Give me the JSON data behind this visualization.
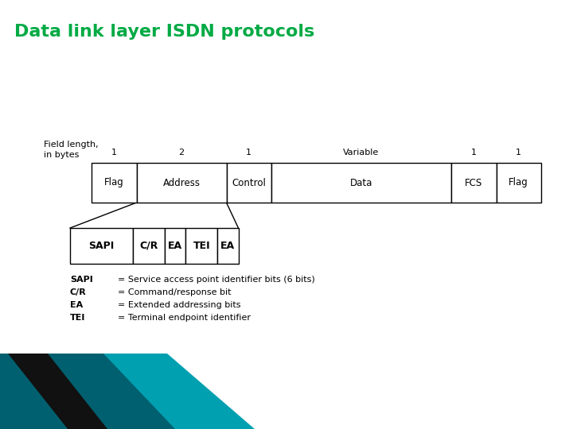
{
  "title": "Data link layer ISDN protocols",
  "title_color": "#00AA44",
  "title_fontsize": 16,
  "bg_color": "#FFFFFF",
  "field_label_line1": "Field length,",
  "field_label_line2": "in bytes",
  "field_lengths": [
    "1",
    "2",
    "1",
    "Variable",
    "1",
    "1"
  ],
  "top_fields": [
    "Flag",
    "Address",
    "Control",
    "Data",
    "FCS",
    "Flag"
  ],
  "top_field_widths": [
    1,
    2,
    1,
    4,
    1,
    1
  ],
  "bottom_fields": [
    "SAPI",
    "C/R",
    "EA",
    "TEI",
    "EA"
  ],
  "bottom_field_widths": [
    3,
    1.5,
    1,
    1.5,
    1
  ],
  "legend_abbrs": [
    "SAPI",
    "C/R",
    "EA",
    "TEI"
  ],
  "legend_defs": [
    "= Service access point identifier bits (6 bits)",
    "= Command/response bit",
    "= Extended addressing bits",
    "= Terminal endpoint identifier"
  ],
  "box_line_color": "#000000",
  "text_color": "#000000",
  "teal_light": "#00A0B0",
  "teal_dark": "#006070",
  "black_stripe": "#111111"
}
